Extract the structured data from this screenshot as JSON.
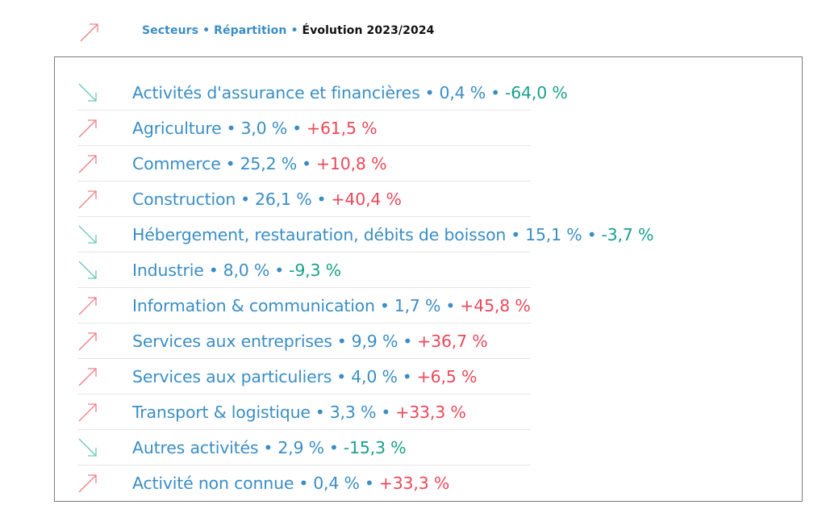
{
  "breadcrumb": {
    "items": [
      "Secteurs",
      "Répartition",
      "Évolution 2023/2024"
    ],
    "separator": "•"
  },
  "header_icon": "trend-up-arrow-icon",
  "colors": {
    "accent_blue": "#3b8ec4",
    "trend_up": "#e84a5a",
    "trend_down": "#19a08c",
    "border": "#7a7a7a"
  },
  "sectors": [
    {
      "name": "Activités d'assurance et financières",
      "share": "0,4 %",
      "change": "-64,0 %",
      "trend": "down"
    },
    {
      "name": "Agriculture",
      "share": "3,0 %",
      "change": "+61,5 %",
      "trend": "up"
    },
    {
      "name": "Commerce",
      "share": "25,2 %",
      "change": "+10,8 %",
      "trend": "up"
    },
    {
      "name": "Construction",
      "share": "26,1 %",
      "change": "+40,4 %",
      "trend": "up"
    },
    {
      "name": "Hébergement, restauration, débits de boisson",
      "share": "15,1 %",
      "change": "-3,7 %",
      "trend": "down"
    },
    {
      "name": "Industrie",
      "share": "8,0 %",
      "change": "-9,3 %",
      "trend": "down"
    },
    {
      "name": "Information & communication",
      "share": "1,7 %",
      "change": "+45,8 %",
      "trend": "up"
    },
    {
      "name": "Services aux entreprises",
      "share": "9,9 %",
      "change": "+36,7 %",
      "trend": "up"
    },
    {
      "name": "Services aux particuliers",
      "share": "4,0 %",
      "change": "+6,5 %",
      "trend": "up"
    },
    {
      "name": "Transport & logistique",
      "share": "3,3 %",
      "change": "+33,3 %",
      "trend": "up"
    },
    {
      "name": "Autres activités",
      "share": "2,9 %",
      "change": "-15,3 %",
      "trend": "down"
    },
    {
      "name": "Activité non connue",
      "share": "0,4 %",
      "change": "+33,3 %",
      "trend": "up"
    }
  ]
}
